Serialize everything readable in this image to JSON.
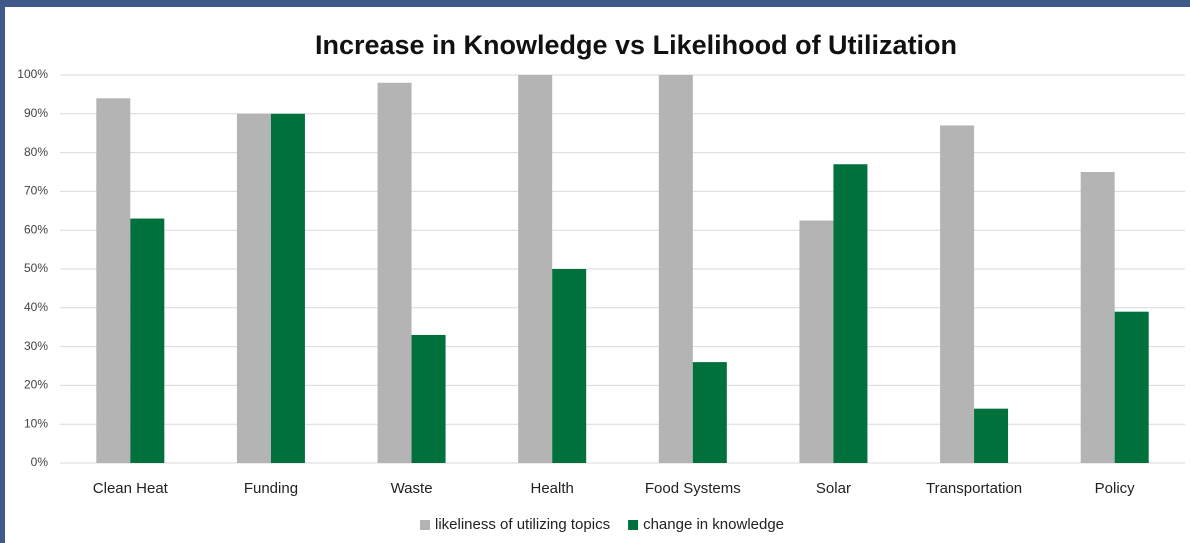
{
  "chart_data": {
    "type": "bar",
    "title": "Increase in Knowledge vs Likelihood of Utilization",
    "categories": [
      "Clean Heat",
      "Funding",
      "Waste",
      "Health",
      "Food Systems",
      "Solar",
      "Transportation",
      "Policy"
    ],
    "series": [
      {
        "name": "likeliness of utilizing topics",
        "color": "#b4b4b4",
        "values": [
          94,
          90,
          98,
          100,
          100,
          62.5,
          87,
          75
        ]
      },
      {
        "name": "change in knowledge",
        "color": "#00703c",
        "values": [
          63,
          90,
          33,
          50,
          26,
          77,
          14,
          39
        ]
      }
    ],
    "ylim": [
      0,
      100
    ],
    "yticks": [
      {
        "value": 0,
        "label": "0%"
      },
      {
        "value": 10,
        "label": "10%"
      },
      {
        "value": 20,
        "label": "20%"
      },
      {
        "value": 30,
        "label": "30%"
      },
      {
        "value": 40,
        "label": "40%"
      },
      {
        "value": 50,
        "label": "50%"
      },
      {
        "value": 60,
        "label": "60%"
      },
      {
        "value": 70,
        "label": "70%"
      },
      {
        "value": 80,
        "label": "80%"
      },
      {
        "value": 90,
        "label": "90%"
      },
      {
        "value": 100,
        "label": "100%"
      }
    ],
    "grid": true,
    "legend": "bottom"
  }
}
